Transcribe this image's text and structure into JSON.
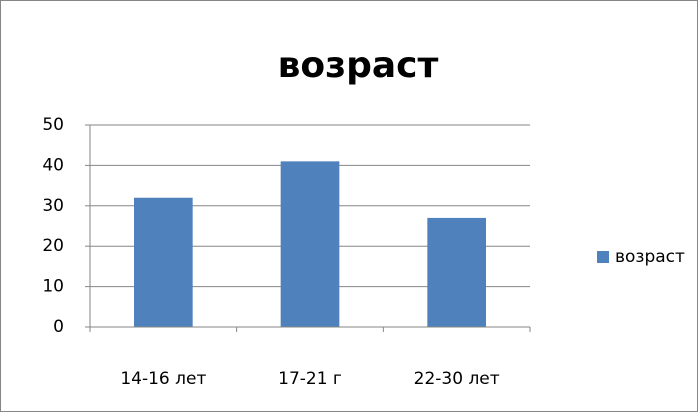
{
  "chart_data": {
    "type": "bar",
    "title": "возраст",
    "categories": [
      "14-16 лет",
      "17-21 г",
      "22-30 лет"
    ],
    "series": [
      {
        "name": "возраст",
        "color": "#4f81bd",
        "values": [
          32,
          41,
          27
        ]
      }
    ],
    "ylim": [
      0,
      50
    ],
    "yticks": [
      0,
      10,
      20,
      30,
      40,
      50
    ],
    "grid": true,
    "legend": "right"
  }
}
